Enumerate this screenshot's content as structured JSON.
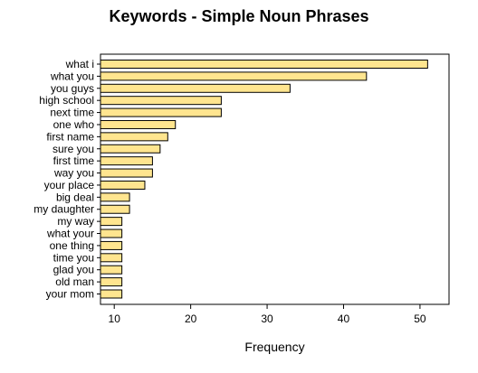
{
  "chart_data": {
    "type": "bar",
    "orientation": "horizontal",
    "title": "Keywords - Simple Noun Phrases",
    "xlabel": "Frequency",
    "ylabel": "",
    "categories": [
      "what i",
      "what you",
      "you guys",
      "high school",
      "next time",
      "one who",
      "first name",
      "sure you",
      "first time",
      "way you",
      "your place",
      "big deal",
      "my daughter",
      "my way",
      "what your",
      "one thing",
      "time you",
      "glad you",
      "old man",
      "your mom"
    ],
    "values": [
      51,
      43,
      33,
      24,
      24,
      18,
      17,
      16,
      15,
      15,
      14,
      12,
      12,
      11,
      11,
      11,
      11,
      11,
      11,
      11
    ],
    "xlim": [
      8.2,
      53.8
    ],
    "xticks": [
      10,
      20,
      30,
      40,
      50
    ],
    "grid": false,
    "colors": {
      "bar_fill": "#FFE58F",
      "bar_stroke": "#000000"
    }
  }
}
